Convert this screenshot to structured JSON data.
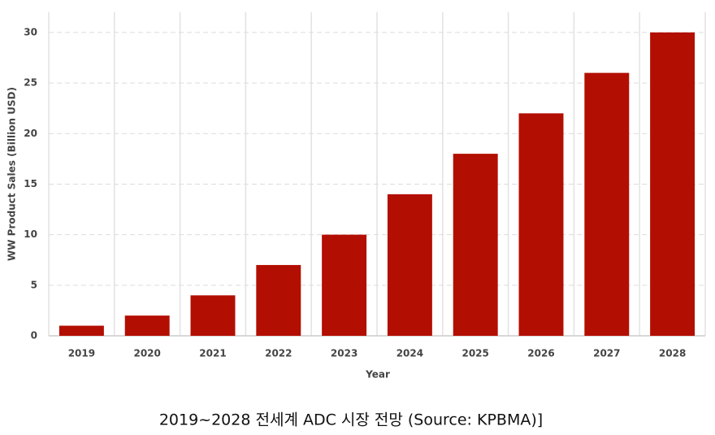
{
  "chart_data": {
    "type": "bar",
    "x_label": "Year",
    "y_label": "WW Product Sales (Billion USD)",
    "caption": "2019~2028 전세계 ADC 시장 전망 (Source: KPBMA)]",
    "categories": [
      "2019",
      "2020",
      "2021",
      "2022",
      "2023",
      "2024",
      "2025",
      "2026",
      "2027",
      "2028"
    ],
    "values": [
      1,
      2,
      4,
      7,
      10,
      14,
      18,
      22,
      26,
      30
    ],
    "color": "#b30e02",
    "ylim": [
      0,
      32
    ],
    "yticks": [
      0,
      5,
      10,
      15,
      20,
      25,
      30
    ],
    "grid": true
  }
}
